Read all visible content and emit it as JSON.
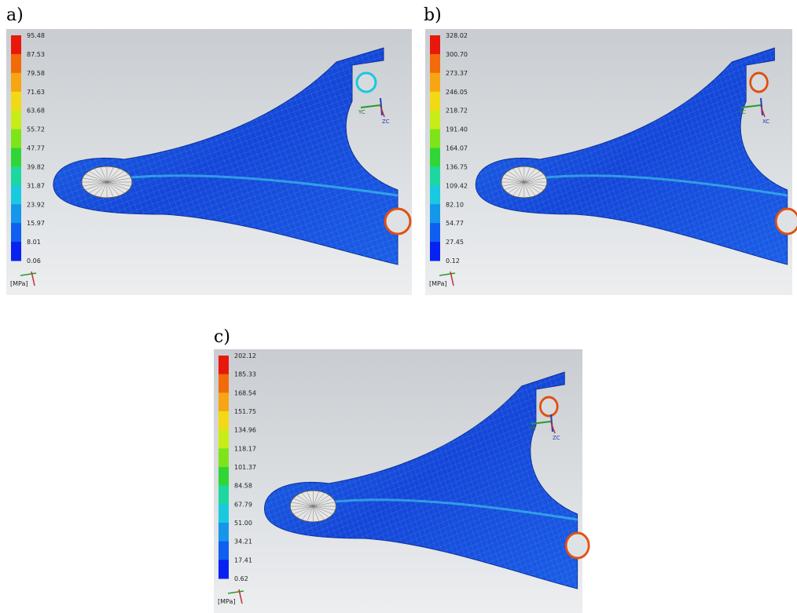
{
  "panels": [
    {
      "label": "a)",
      "unit": "[MPa]",
      "triad": [
        "YC",
        "ZC"
      ],
      "legend": [
        "95.48",
        "87.53",
        "79.58",
        "71.63",
        "63.68",
        "55.72",
        "47.77",
        "39.82",
        "31.87",
        "23.92",
        "15.97",
        "8.01",
        "0.06"
      ]
    },
    {
      "label": "b)",
      "unit": "[MPa]",
      "triad": [
        "YC",
        "XC"
      ],
      "legend": [
        "328.02",
        "300.70",
        "273.37",
        "246.05",
        "218.72",
        "191.40",
        "164.07",
        "136.75",
        "109.42",
        "82.10",
        "54.77",
        "27.45",
        "0.12"
      ]
    },
    {
      "label": "c)",
      "unit": "[MPa]",
      "triad": [
        "YC",
        "ZC"
      ],
      "legend": [
        "202.12",
        "185.33",
        "168.54",
        "151.75",
        "134.96",
        "118.17",
        "101.37",
        "84.58",
        "67.79",
        "51.00",
        "34.21",
        "17.41",
        "0.62"
      ]
    }
  ],
  "legend_colors": [
    "#e8180a",
    "#f26a0a",
    "#f7a512",
    "#f2d916",
    "#c8ec18",
    "#7ee41a",
    "#2fd636",
    "#1cd8a0",
    "#18c9e0",
    "#1496ea",
    "#0f5ff0",
    "#0822f2"
  ]
}
